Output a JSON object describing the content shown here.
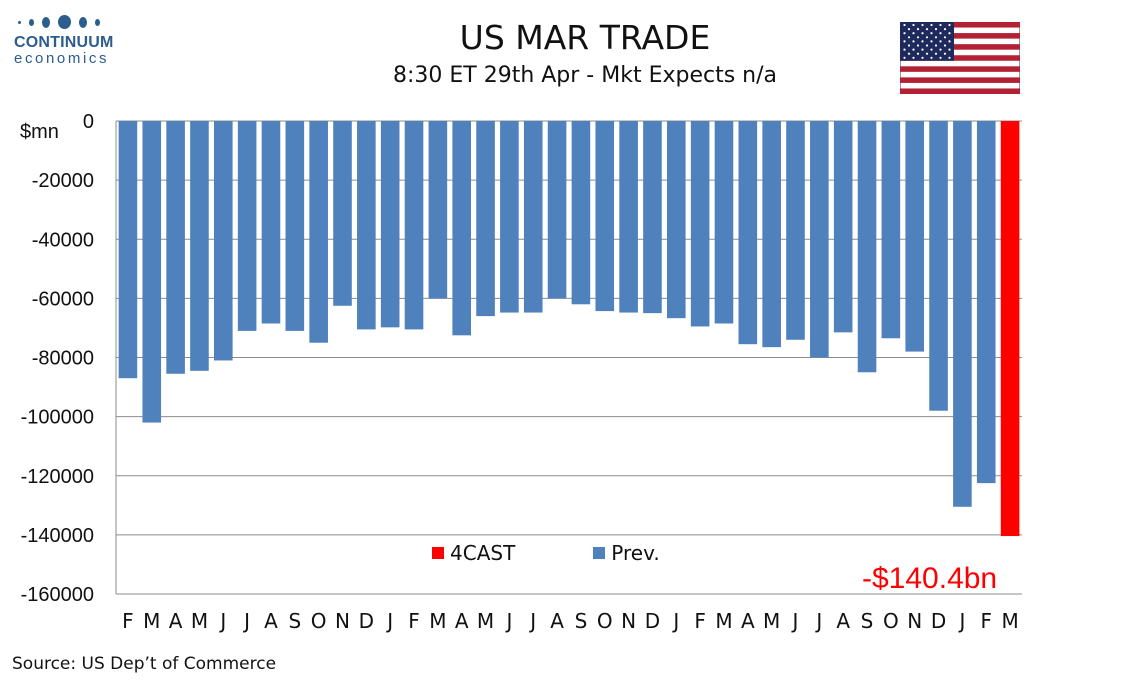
{
  "logo": {
    "name": "CONTINUUM",
    "sub": "economics"
  },
  "header": {
    "title": "US MAR TRADE",
    "subtitle": "8:30 ET 29th Apr - Mkt Expects n/a"
  },
  "source": "Source: US Dep’t of Commerce",
  "forecast_label": "-$140.4bn",
  "colors": {
    "prev": "#4f81bd",
    "forecast": "#ff0000",
    "logo": "#2b5d8f"
  },
  "icons": {
    "flag": "us-flag-icon"
  },
  "chart_data": {
    "type": "bar",
    "title": "US MAR TRADE",
    "subtitle": "8:30 ET 29th Apr - Mkt Expects n/a",
    "ylabel": "$mn",
    "ylim": [
      -160000,
      0
    ],
    "yticks": [
      0,
      -20000,
      -40000,
      -60000,
      -80000,
      -100000,
      -120000,
      -140000,
      -160000
    ],
    "grid": true,
    "legend_placement": "bottom-center",
    "categories": [
      "F",
      "M",
      "A",
      "M",
      "J",
      "J",
      "A",
      "S",
      "O",
      "N",
      "D",
      "J",
      "F",
      "M",
      "A",
      "M",
      "J",
      "J",
      "A",
      "S",
      "O",
      "N",
      "D",
      "J",
      "F",
      "M",
      "A",
      "M",
      "J",
      "J",
      "A",
      "S",
      "O",
      "N",
      "D",
      "J",
      "F",
      "M"
    ],
    "series": [
      {
        "name": "Prev.",
        "color": "#4f81bd",
        "values": [
          -87000,
          -102000,
          -85500,
          -84500,
          -81000,
          -71000,
          -68500,
          -71000,
          -75000,
          -62500,
          -70500,
          -69800,
          -70500,
          -60000,
          -72500,
          -66000,
          -64800,
          -64800,
          -60000,
          -62000,
          -64300,
          -64800,
          -65000,
          -66700,
          -69500,
          -68500,
          -75500,
          -76500,
          -74000,
          -80000,
          -71500,
          -85000,
          -73500,
          -78000,
          -98000,
          -130500,
          -122500,
          null
        ]
      },
      {
        "name": "4CAST",
        "color": "#ff0000",
        "values": [
          null,
          null,
          null,
          null,
          null,
          null,
          null,
          null,
          null,
          null,
          null,
          null,
          null,
          null,
          null,
          null,
          null,
          null,
          null,
          null,
          null,
          null,
          null,
          null,
          null,
          null,
          null,
          null,
          null,
          null,
          null,
          null,
          null,
          null,
          null,
          null,
          null,
          -140400
        ]
      }
    ]
  }
}
